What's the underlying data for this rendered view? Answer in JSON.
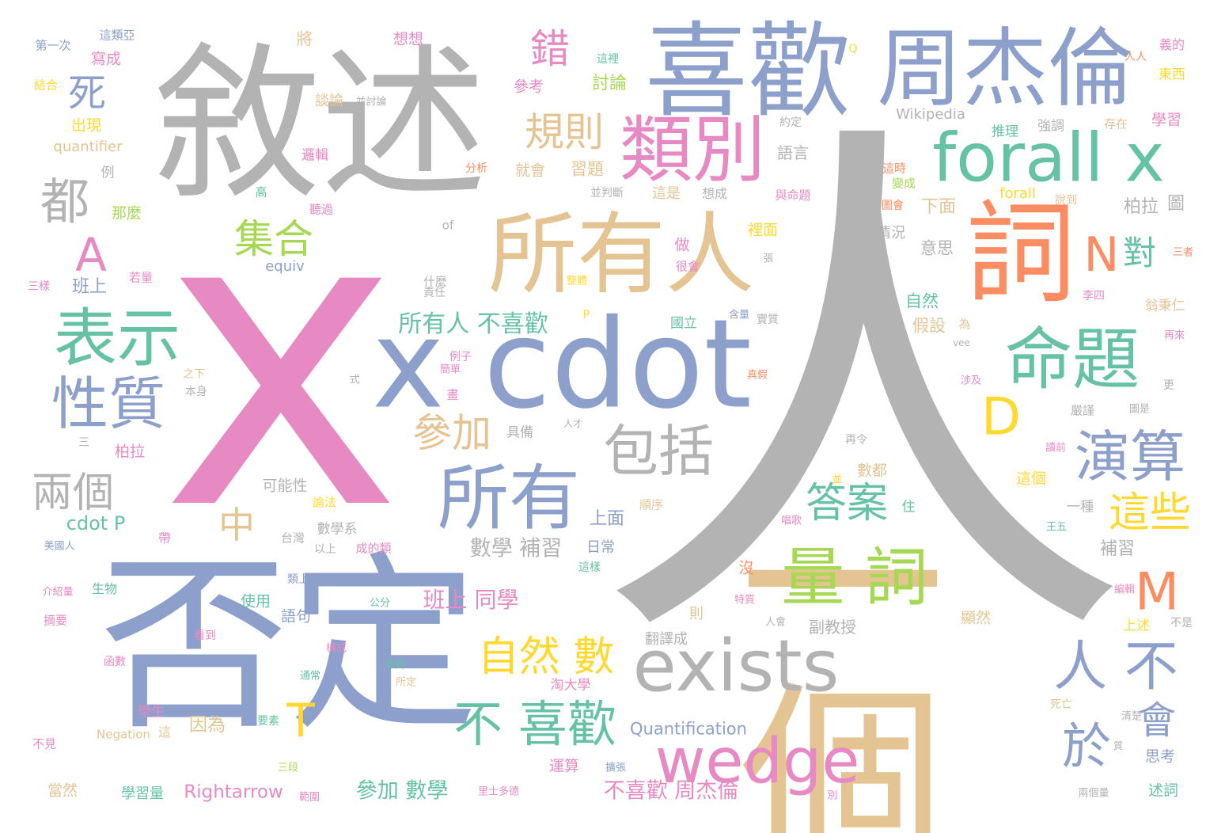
{
  "palette": {
    "gray": "#b3b3b3",
    "pink": "#e78ac3",
    "blue": "#8da0cb",
    "green": "#66c2a5",
    "orange": "#fc8d62",
    "lime": "#a6d854",
    "yellow": "#ffd92f",
    "tan": "#e5c494"
  },
  "words": [
    {
      "text": "人",
      "color": "gray"
    },
    {
      "text": "x",
      "color": "pink"
    },
    {
      "text": "敘述",
      "color": "gray"
    },
    {
      "text": "否定",
      "color": "blue"
    },
    {
      "text": "一個",
      "color": "tan"
    },
    {
      "text": "喜歡",
      "color": "blue"
    },
    {
      "text": "周杰倫",
      "color": "blue"
    },
    {
      "text": "x cdot",
      "color": "blue"
    },
    {
      "text": "所有人",
      "color": "tan"
    },
    {
      "text": "詞",
      "color": "orange"
    },
    {
      "text": "forall x",
      "color": "green"
    },
    {
      "text": "類別",
      "color": "pink"
    },
    {
      "text": "命題",
      "color": "green"
    },
    {
      "text": "exists",
      "color": "gray"
    },
    {
      "text": "表示",
      "color": "green"
    },
    {
      "text": "所有",
      "color": "blue"
    },
    {
      "text": "量 詞",
      "color": "lime"
    },
    {
      "text": "包括",
      "color": "gray"
    },
    {
      "text": "wedge",
      "color": "pink"
    },
    {
      "text": "性質",
      "color": "blue"
    },
    {
      "text": "演算",
      "color": "blue"
    },
    {
      "text": "都",
      "color": "gray"
    },
    {
      "text": "A",
      "color": "pink"
    },
    {
      "text": "D",
      "color": "yellow"
    },
    {
      "text": "N",
      "color": "orange"
    },
    {
      "text": "M",
      "color": "orange"
    },
    {
      "text": "人 不",
      "color": "blue"
    },
    {
      "text": "於",
      "color": "blue"
    },
    {
      "text": "會",
      "color": "blue"
    },
    {
      "text": "不 喜歡",
      "color": "green"
    },
    {
      "text": "自然 數",
      "color": "yellow"
    },
    {
      "text": "答案",
      "color": "green"
    },
    {
      "text": "這些",
      "color": "yellow"
    },
    {
      "text": "參加",
      "color": "tan"
    },
    {
      "text": "規則",
      "color": "tan"
    },
    {
      "text": "集合",
      "color": "lime"
    },
    {
      "text": "兩個",
      "color": "gray"
    },
    {
      "text": "錯",
      "color": "pink"
    },
    {
      "text": "對",
      "color": "green"
    },
    {
      "text": "死",
      "color": "blue"
    },
    {
      "text": "中",
      "color": "tan"
    },
    {
      "text": "T",
      "color": "yellow"
    },
    {
      "text": "所有人 不喜歡",
      "color": "green"
    },
    {
      "text": "班上 同學",
      "color": "pink"
    },
    {
      "text": "參加 數學",
      "color": "green"
    },
    {
      "text": "不喜歡 周杰倫",
      "color": "pink"
    },
    {
      "text": "數學 補習",
      "color": "gray"
    },
    {
      "text": "Rightarrow",
      "color": "pink"
    },
    {
      "text": "cdot P",
      "color": "green"
    },
    {
      "text": "Quantification",
      "color": "blue"
    },
    {
      "text": "Wikipedia",
      "color": "gray"
    },
    {
      "text": "quantifier",
      "color": "tan"
    },
    {
      "text": "forall",
      "color": "yellow"
    },
    {
      "text": "equiv",
      "color": "blue"
    },
    {
      "text": "Negation",
      "color": "tan"
    },
    {
      "text": "of",
      "color": "gray"
    },
    {
      "text": "Q",
      "color": "yellow"
    },
    {
      "text": "vee",
      "color": "gray"
    },
    {
      "text": "P",
      "color": "yellow"
    },
    {
      "text": "第一次",
      "color": "blue"
    },
    {
      "text": "這類亞",
      "color": "blue"
    },
    {
      "text": "寫成",
      "color": "pink"
    },
    {
      "text": "結合",
      "color": "yellow"
    },
    {
      "text": "出現",
      "color": "yellow"
    },
    {
      "text": "例",
      "color": "gray"
    },
    {
      "text": "將",
      "color": "tan"
    },
    {
      "text": "想想",
      "color": "pink"
    },
    {
      "text": "參考",
      "color": "pink"
    },
    {
      "text": "這裡",
      "color": "green"
    },
    {
      "text": "討論",
      "color": "lime"
    },
    {
      "text": "談論",
      "color": "tan"
    },
    {
      "text": "並討論",
      "color": "gray"
    },
    {
      "text": "約定",
      "color": "gray"
    },
    {
      "text": "語言",
      "color": "gray"
    },
    {
      "text": "推理",
      "color": "green"
    },
    {
      "text": "強調",
      "color": "gray"
    },
    {
      "text": "存在",
      "color": "tan"
    },
    {
      "text": "學習",
      "color": "pink"
    },
    {
      "text": "人人",
      "color": "orange"
    },
    {
      "text": "義的",
      "color": "pink"
    },
    {
      "text": "東西",
      "color": "yellow"
    },
    {
      "text": "邏輯",
      "color": "pink"
    },
    {
      "text": "分析",
      "color": "orange"
    },
    {
      "text": "就會",
      "color": "tan"
    },
    {
      "text": "習題",
      "color": "tan"
    },
    {
      "text": "並判斷",
      "color": "gray"
    },
    {
      "text": "這是",
      "color": "tan"
    },
    {
      "text": "想成",
      "color": "gray"
    },
    {
      "text": "與命題",
      "color": "pink"
    },
    {
      "text": "這時",
      "color": "orange"
    },
    {
      "text": "變成",
      "color": "lime"
    },
    {
      "text": "圖會",
      "color": "orange"
    },
    {
      "text": "下面",
      "color": "tan"
    },
    {
      "text": "說到",
      "color": "tan"
    },
    {
      "text": "柏拉",
      "color": "gray"
    },
    {
      "text": "圖",
      "color": "gray"
    },
    {
      "text": "高",
      "color": "green"
    },
    {
      "text": "聽過",
      "color": "pink"
    },
    {
      "text": "那麼",
      "color": "lime"
    },
    {
      "text": "裡面",
      "color": "yellow"
    },
    {
      "text": "情況",
      "color": "gray"
    },
    {
      "text": "意思",
      "color": "gray"
    },
    {
      "text": "三者",
      "color": "orange"
    },
    {
      "text": "做",
      "color": "pink"
    },
    {
      "text": "張",
      "color": "gray"
    },
    {
      "text": "很會",
      "color": "pink"
    },
    {
      "text": "什麼",
      "color": "gray"
    },
    {
      "text": "整體",
      "color": "yellow"
    },
    {
      "text": "三樣",
      "color": "pink"
    },
    {
      "text": "若量",
      "color": "pink"
    },
    {
      "text": "班上",
      "color": "blue"
    },
    {
      "text": "責任",
      "color": "gray"
    },
    {
      "text": "自然",
      "color": "green"
    },
    {
      "text": "李四",
      "color": "pink"
    },
    {
      "text": "翁秉仁",
      "color": "tan"
    },
    {
      "text": "國立",
      "color": "green"
    },
    {
      "text": "含量",
      "color": "blue"
    },
    {
      "text": "實質",
      "color": "gray"
    },
    {
      "text": "假設",
      "color": "tan"
    },
    {
      "text": "為",
      "color": "tan"
    },
    {
      "text": "再來",
      "color": "pink"
    },
    {
      "text": "例子",
      "color": "pink"
    },
    {
      "text": "簡單",
      "color": "pink"
    },
    {
      "text": "式",
      "color": "gray"
    },
    {
      "text": "之下",
      "color": "tan"
    },
    {
      "text": "本身",
      "color": "gray"
    },
    {
      "text": "人才",
      "color": "gray"
    },
    {
      "text": "嚴謹",
      "color": "gray"
    },
    {
      "text": "圖是",
      "color": "gray"
    },
    {
      "text": "涉及",
      "color": "pink"
    },
    {
      "text": "更",
      "color": "gray"
    },
    {
      "text": "三",
      "color": "gray"
    },
    {
      "text": "具備",
      "color": "gray"
    },
    {
      "text": "畫",
      "color": "pink"
    },
    {
      "text": "真假",
      "color": "orange"
    },
    {
      "text": "讀前",
      "color": "pink"
    },
    {
      "text": "柏拉",
      "color": "pink"
    },
    {
      "text": "可能性",
      "color": "gray"
    },
    {
      "text": "再令",
      "color": "gray"
    },
    {
      "text": "數都",
      "color": "tan"
    },
    {
      "text": "並",
      "color": "yellow"
    },
    {
      "text": "這個",
      "color": "yellow"
    },
    {
      "text": "論法",
      "color": "yellow"
    },
    {
      "text": "順序",
      "color": "tan"
    },
    {
      "text": "一種",
      "color": "gray"
    },
    {
      "text": "住",
      "color": "green"
    },
    {
      "text": "上面",
      "color": "blue"
    },
    {
      "text": "唱歌",
      "color": "pink"
    },
    {
      "text": "台灣",
      "color": "gray"
    },
    {
      "text": "數學系",
      "color": "gray"
    },
    {
      "text": "成的類",
      "color": "pink"
    },
    {
      "text": "日常",
      "color": "blue"
    },
    {
      "text": "王五",
      "color": "green"
    },
    {
      "text": "美國人",
      "color": "blue"
    },
    {
      "text": "帶",
      "color": "pink"
    },
    {
      "text": "以上",
      "color": "gray"
    },
    {
      "text": "這樣",
      "color": "green"
    },
    {
      "text": "補習",
      "color": "gray"
    },
    {
      "text": "沒",
      "color": "orange"
    },
    {
      "text": "介紹量",
      "color": "pink"
    },
    {
      "text": "生物",
      "color": "green"
    },
    {
      "text": "類上",
      "color": "blue"
    },
    {
      "text": "編輯",
      "color": "pink"
    },
    {
      "text": "使用",
      "color": "green"
    },
    {
      "text": "公分",
      "color": "green"
    },
    {
      "text": "則",
      "color": "tan"
    },
    {
      "text": "特質",
      "color": "pink"
    },
    {
      "text": "摘要",
      "color": "pink"
    },
    {
      "text": "語句",
      "color": "blue"
    },
    {
      "text": "人會",
      "color": "gray"
    },
    {
      "text": "副教授",
      "color": "gray"
    },
    {
      "text": "顯然",
      "color": "tan"
    },
    {
      "text": "上述",
      "color": "yellow"
    },
    {
      "text": "不是",
      "color": "gray"
    },
    {
      "text": "函數",
      "color": "pink"
    },
    {
      "text": "看到",
      "color": "pink"
    },
    {
      "text": "構成",
      "color": "pink"
    },
    {
      "text": "翻譯成",
      "color": "gray"
    },
    {
      "text": "通常",
      "color": "green"
    },
    {
      "text": "身高",
      "color": "green"
    },
    {
      "text": "所定",
      "color": "tan"
    },
    {
      "text": "淘大學",
      "color": "pink"
    },
    {
      "text": "死亡",
      "color": "tan"
    },
    {
      "text": "學生",
      "color": "pink"
    },
    {
      "text": "因為",
      "color": "tan"
    },
    {
      "text": "這",
      "color": "tan"
    },
    {
      "text": "要素",
      "color": "green"
    },
    {
      "text": "清楚",
      "color": "gray"
    },
    {
      "text": "不見",
      "color": "pink"
    },
    {
      "text": "三段",
      "color": "lime"
    },
    {
      "text": "運算",
      "color": "pink"
    },
    {
      "text": "擴張",
      "color": "blue"
    },
    {
      "text": "質",
      "color": "gray"
    },
    {
      "text": "思考",
      "color": "blue"
    },
    {
      "text": "當然",
      "color": "tan"
    },
    {
      "text": "學習量",
      "color": "green"
    },
    {
      "text": "範圍",
      "color": "pink"
    },
    {
      "text": "里士多德",
      "color": "pink"
    },
    {
      "text": "別",
      "color": "pink"
    },
    {
      "text": "兩個量",
      "color": "gray"
    },
    {
      "text": "述詞",
      "color": "green"
    }
  ]
}
